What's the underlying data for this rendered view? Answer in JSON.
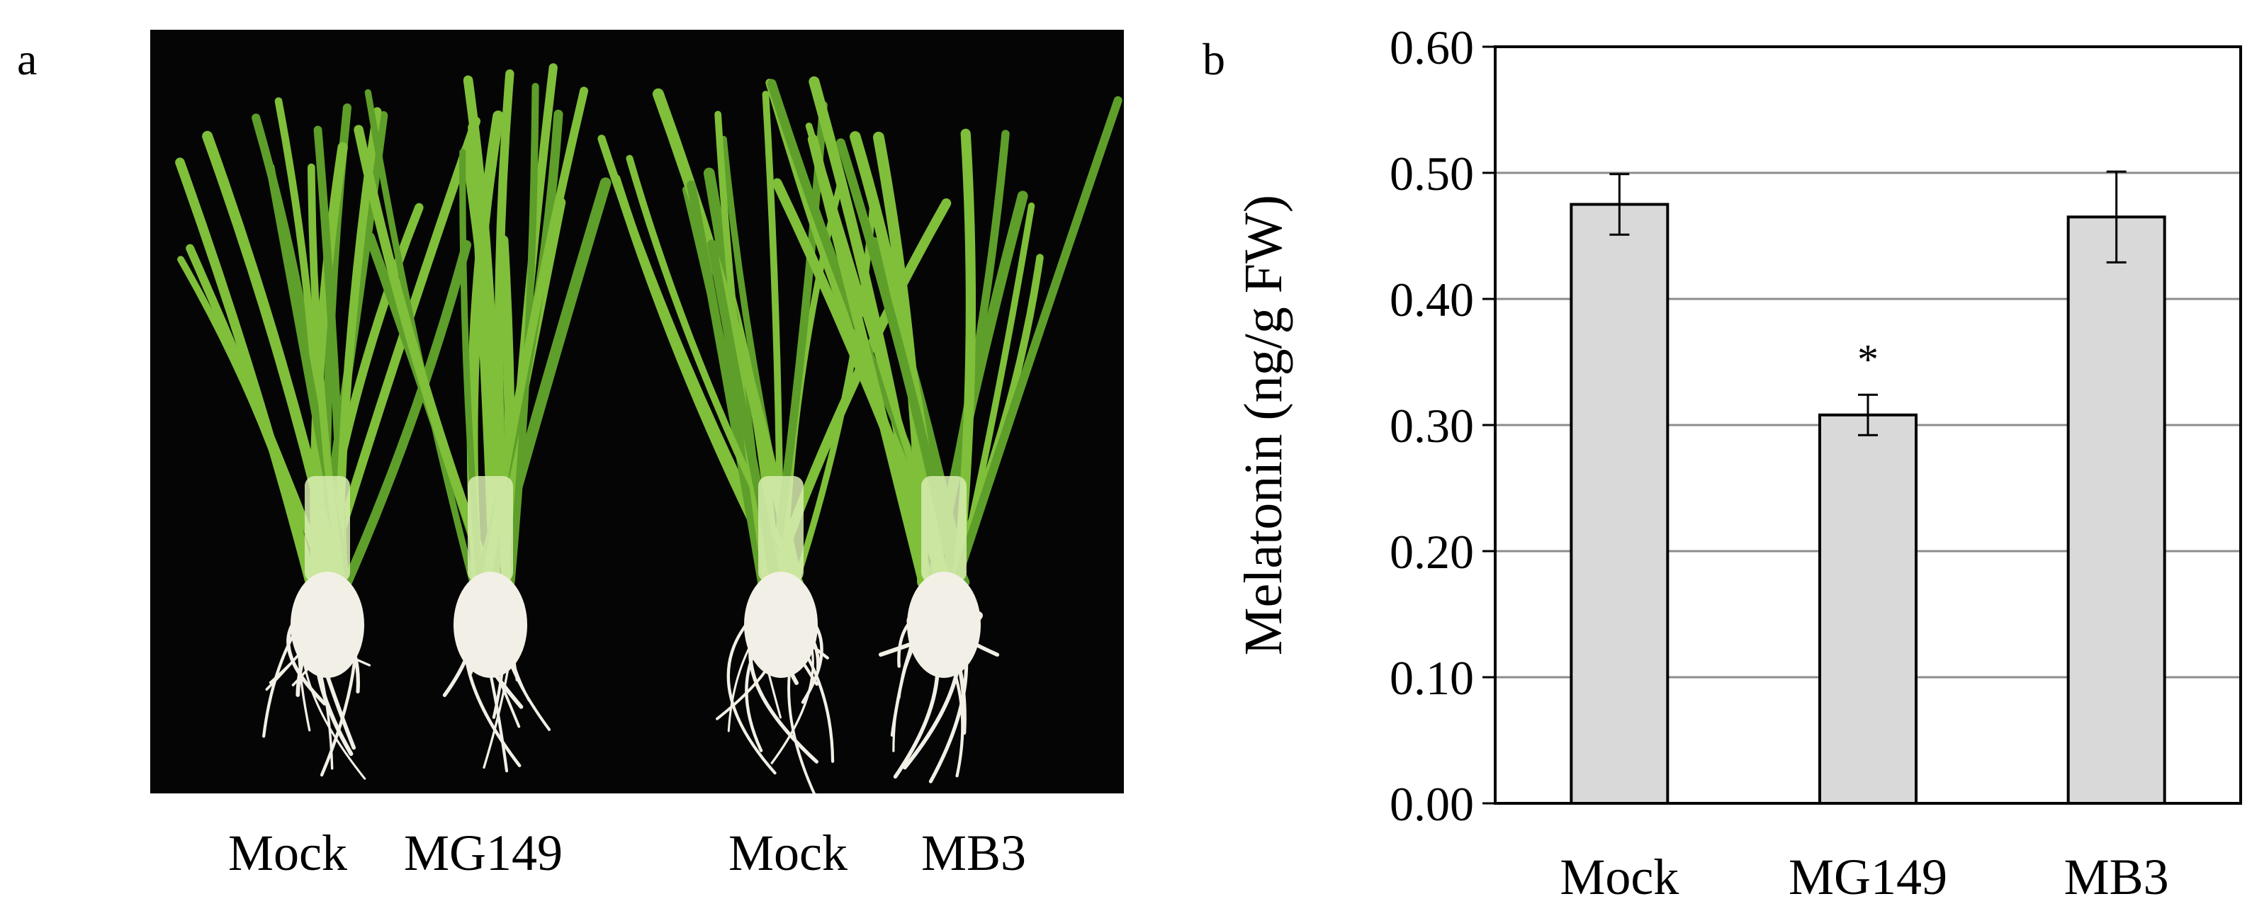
{
  "panels": {
    "a_label": "a",
    "b_label": "b"
  },
  "photo": {
    "labels": [
      "Mock",
      "MG149",
      "Mock",
      "MB3"
    ],
    "colors": {
      "background": "#050505",
      "leaf": "#7fbf3a",
      "leaf_dark": "#5e9e2a",
      "stem": "#d8ecb0",
      "root": "#f2f0e6"
    }
  },
  "chart_data": {
    "type": "bar",
    "categories": [
      "Mock",
      "MG149",
      "MB3"
    ],
    "values": [
      0.475,
      0.308,
      0.465
    ],
    "errors": [
      0.024,
      0.016,
      0.036
    ],
    "ylabel": "Melatonin (ng/g FW)",
    "xlabel": "",
    "ylim": [
      0,
      0.6
    ],
    "yticks": [
      "0.00",
      "0.10",
      "0.20",
      "0.30",
      "0.40",
      "0.50",
      "0.60"
    ],
    "annotations": [
      {
        "category": "MG149",
        "text": "*"
      }
    ],
    "grid": true,
    "bar_color": "#d9d9d9",
    "bar_edge_color": "#000000",
    "grid_color": "#8c8c8c"
  }
}
